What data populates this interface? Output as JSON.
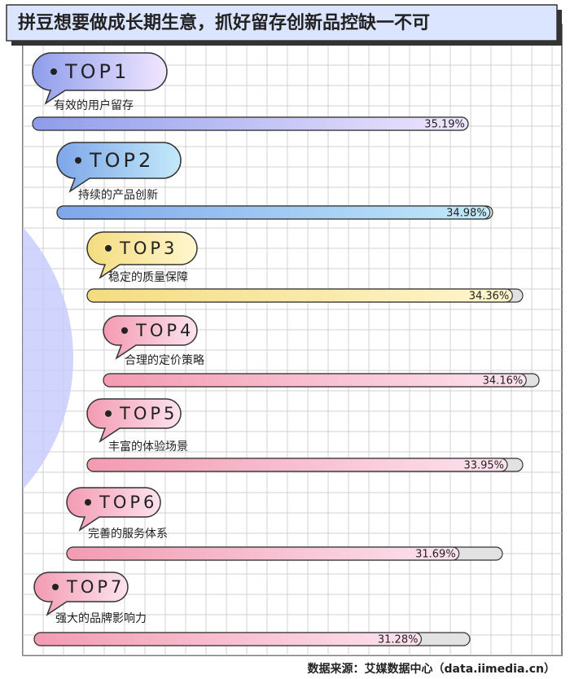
{
  "chart_data": {
    "type": "bar",
    "title": "拼豆想要做成长期生意，抓好留存创新品控缺一不可",
    "ranks": [
      "TOP1",
      "TOP2",
      "TOP3",
      "TOP4",
      "TOP5",
      "TOP6",
      "TOP7"
    ],
    "categories": [
      "有效的用户留存",
      "持续的产品创新",
      "稳定的质量保障",
      "合理的定价策略",
      "丰富的体验场景",
      "完善的服务体系",
      "强大的品牌影响力"
    ],
    "values": [
      35.19,
      34.98,
      34.36,
      34.16,
      33.95,
      31.69,
      31.28
    ],
    "value_labels": [
      "35.19%",
      "34.98%",
      "34.36%",
      "34.16%",
      "33.95%",
      "31.69%",
      "31.28%"
    ],
    "colors": [
      [
        "#8e9deb",
        "#f1e6ff"
      ],
      [
        "#7ea6ea",
        "#c3eaf8"
      ],
      [
        "#f4dc7e",
        "#fff6cf"
      ],
      [
        "#f39bb2",
        "#fde3ef"
      ],
      [
        "#f39bb2",
        "#fde3ef"
      ],
      [
        "#f39bb2",
        "#fde3ef"
      ],
      [
        "#f39bb2",
        "#fde3ef"
      ]
    ],
    "source": "数据来源：艾媒数据中心（data.iimedia.cn）"
  }
}
